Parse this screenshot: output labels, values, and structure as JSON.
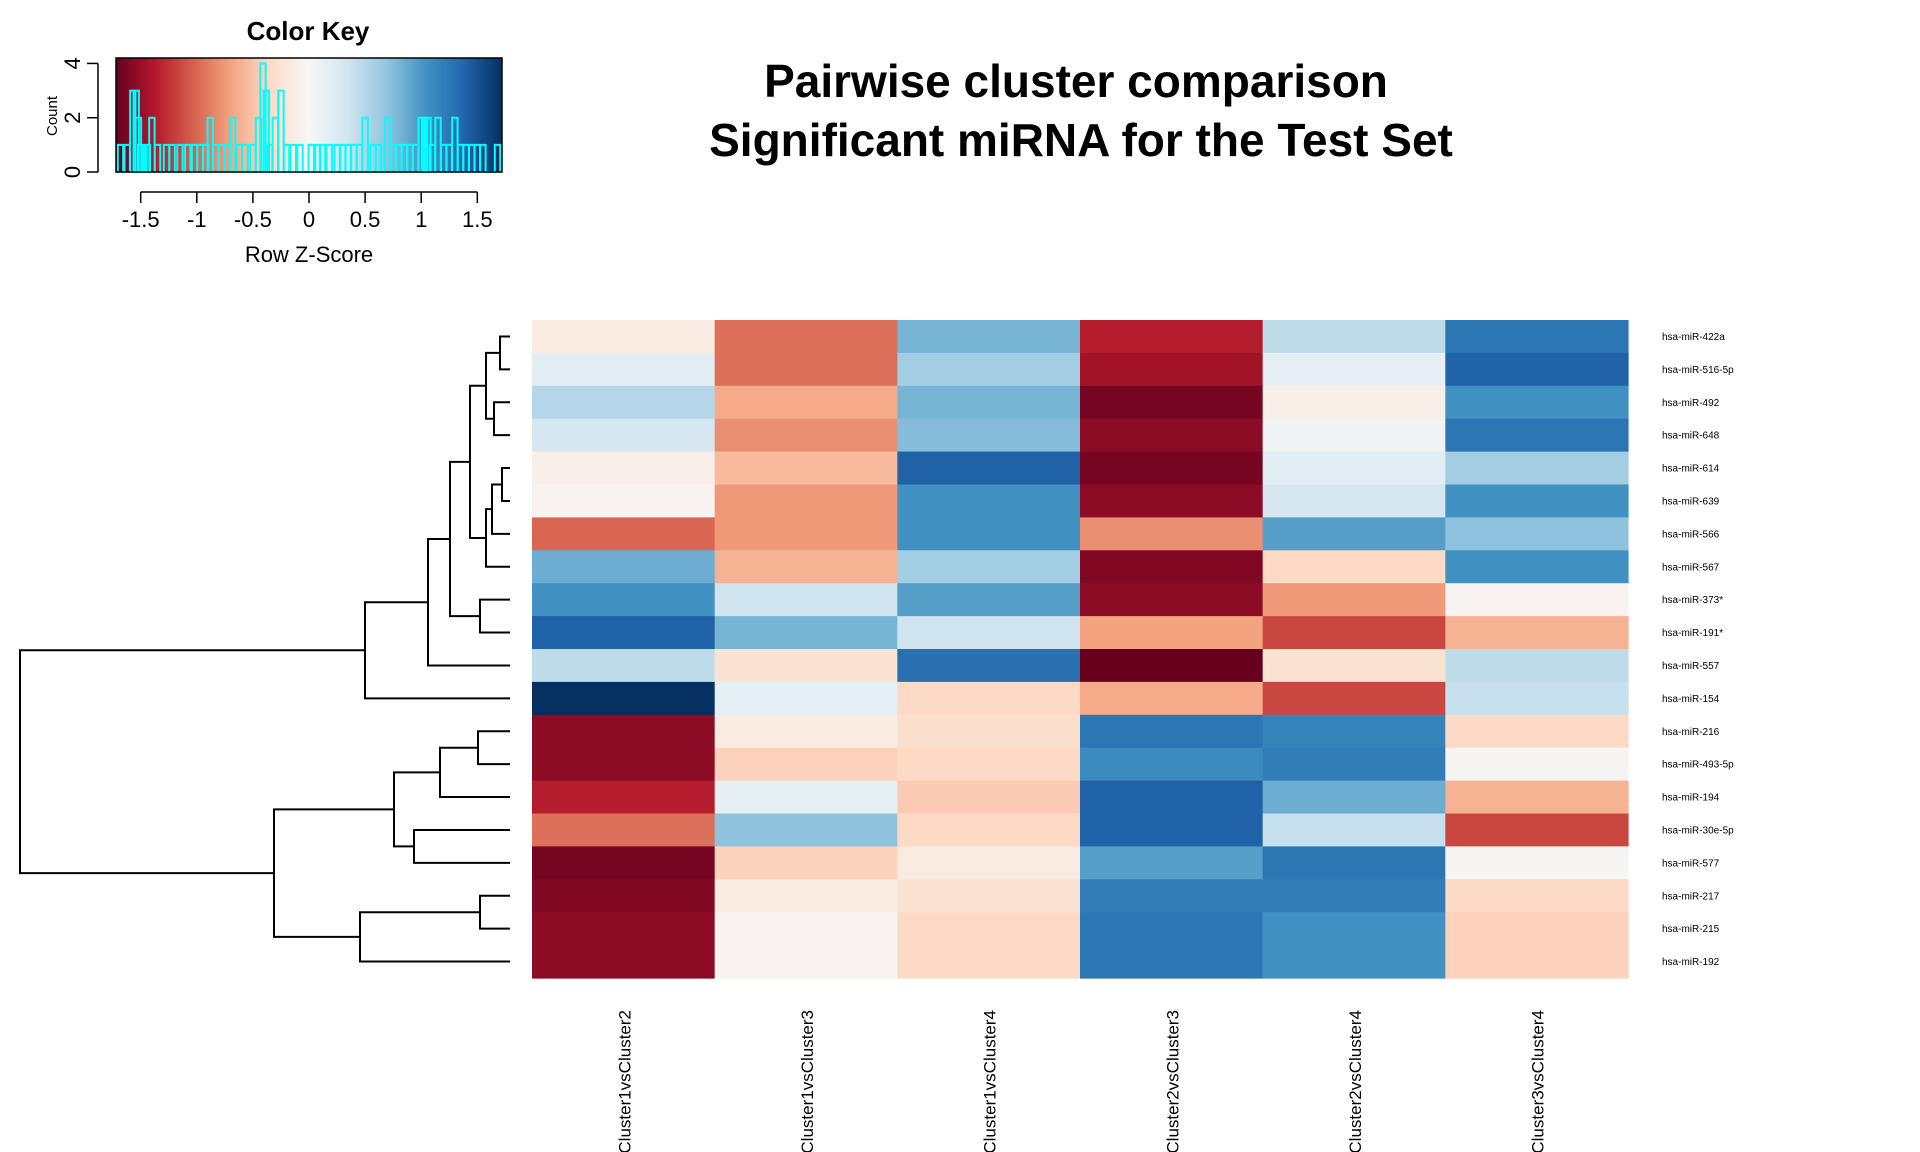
{
  "title_lines": [
    "Pairwise cluster comparison",
    "Significant miRNA for the Test Set"
  ],
  "color_key": {
    "title": "Color Key",
    "xlabel": "Row Z-Score",
    "ylabel": "Count",
    "x_ticks": [
      "-1.5",
      "-1",
      "-0.5",
      "0",
      "0.5",
      "1",
      "1.5"
    ],
    "y_ticks": [
      "0",
      "2",
      "4"
    ],
    "xlim": [
      -1.72,
      1.72
    ],
    "ylim": [
      0,
      4.2
    ],
    "histogram_color": "#00FFFF"
  },
  "palette": {
    "colors": [
      "#67001F",
      "#B2182B",
      "#D6604D",
      "#F4A582",
      "#FDDBC7",
      "#F7F7F7",
      "#D1E5F0",
      "#92C5DE",
      "#4393C3",
      "#2166AC",
      "#053061"
    ],
    "range": [
      -1.72,
      1.72
    ]
  },
  "chart_data": {
    "type": "heatmap",
    "title": "Pairwise cluster comparison Significant miRNA for the Test Set",
    "columns": [
      "Cluster1vsCluster2",
      "Cluster1vsCluster3",
      "Cluster1vsCluster4",
      "Cluster2vsCluster3",
      "Cluster2vsCluster4",
      "Cluster3vsCluster4"
    ],
    "rows": [
      "hsa-miR-422a",
      "hsa-miR-516-5p",
      "hsa-miR-492",
      "hsa-miR-648",
      "hsa-miR-614",
      "hsa-miR-639",
      "hsa-miR-566",
      "hsa-miR-567",
      "hsa-miR-373*",
      "hsa-miR-191*",
      "hsa-miR-557",
      "hsa-miR-154",
      "hsa-miR-216",
      "hsa-miR-493-5p",
      "hsa-miR-194",
      "hsa-miR-30e-5p",
      "hsa-miR-577",
      "hsa-miR-217",
      "hsa-miR-215",
      "hsa-miR-192"
    ],
    "values": [
      [
        -0.15,
        -0.95,
        0.8,
        -1.35,
        0.45,
        1.25
      ],
      [
        0.2,
        -0.95,
        0.6,
        -1.45,
        0.15,
        1.4
      ],
      [
        0.5,
        -0.65,
        0.8,
        -1.65,
        -0.1,
        1.05
      ],
      [
        0.3,
        -0.8,
        0.75,
        -1.55,
        0.05,
        1.25
      ],
      [
        -0.1,
        -0.55,
        1.4,
        -1.65,
        0.2,
        0.6
      ],
      [
        -0.05,
        -0.75,
        1.05,
        -1.55,
        0.3,
        1.05
      ],
      [
        -1.0,
        -0.75,
        1.05,
        -0.8,
        0.95,
        0.7
      ],
      [
        0.85,
        -0.6,
        0.6,
        -1.6,
        -0.35,
        1.05
      ],
      [
        1.05,
        0.35,
        0.95,
        -1.55,
        -0.75,
        -0.05
      ],
      [
        1.4,
        0.8,
        0.35,
        -0.7,
        -1.15,
        -0.6
      ],
      [
        0.45,
        -0.25,
        1.3,
        -1.72,
        -0.25,
        0.45
      ],
      [
        1.72,
        0.15,
        -0.35,
        -0.65,
        -1.15,
        0.4
      ],
      [
        -1.55,
        -0.15,
        -0.3,
        1.25,
        1.15,
        -0.35
      ],
      [
        -1.55,
        -0.4,
        -0.35,
        1.1,
        1.2,
        -0.02
      ],
      [
        -1.35,
        0.15,
        -0.45,
        1.4,
        0.85,
        -0.6
      ],
      [
        -0.95,
        0.7,
        -0.35,
        1.4,
        0.4,
        -1.15
      ],
      [
        -1.65,
        -0.4,
        -0.15,
        0.95,
        1.25,
        -0.02
      ],
      [
        -1.6,
        -0.15,
        -0.25,
        1.2,
        1.2,
        -0.35
      ],
      [
        -1.55,
        -0.05,
        -0.35,
        1.25,
        1.05,
        -0.4
      ],
      [
        -1.55,
        -0.05,
        -0.35,
        1.25,
        1.05,
        -0.4
      ]
    ],
    "value_range": [
      -1.72,
      1.72
    ],
    "histogram": {
      "x": [
        -1.68,
        -1.62,
        -1.57,
        -1.54,
        -1.52,
        -1.5,
        -1.47,
        -1.44,
        -1.4,
        -1.35,
        -1.27,
        -1.22,
        -1.15,
        -1.08,
        -1.02,
        -0.97,
        -0.92,
        -0.88,
        -0.83,
        -0.78,
        -0.73,
        -0.68,
        -0.62,
        -0.57,
        -0.5,
        -0.45,
        -0.41,
        -0.38,
        -0.35,
        -0.3,
        -0.25,
        -0.2,
        -0.14,
        -0.08,
        0.02,
        0.08,
        0.12,
        0.18,
        0.25,
        0.3,
        0.35,
        0.4,
        0.45,
        0.5,
        0.57,
        0.62,
        0.7,
        0.75,
        0.8,
        0.85,
        0.9,
        0.95,
        1.0,
        1.03,
        1.06,
        1.1,
        1.15,
        1.2,
        1.25,
        1.3,
        1.35,
        1.4,
        1.45,
        1.5,
        1.55,
        1.68
      ],
      "count": [
        1,
        1,
        3,
        3,
        2,
        1,
        1,
        1,
        2,
        1,
        1,
        1,
        1,
        1,
        1,
        1,
        1,
        2,
        1,
        1,
        1,
        2,
        1,
        1,
        1,
        2,
        4,
        3,
        1,
        2,
        3,
        1,
        1,
        1,
        1,
        1,
        1,
        1,
        1,
        1,
        1,
        1,
        1,
        2,
        1,
        1,
        2,
        1,
        1,
        1,
        1,
        1,
        2,
        2,
        2,
        1,
        2,
        1,
        1,
        2,
        1,
        1,
        1,
        1,
        1,
        1
      ]
    },
    "row_dendrogram_order": [
      0,
      1,
      2,
      3,
      4,
      5,
      6,
      7,
      8,
      9,
      10,
      11,
      12,
      13,
      14,
      15,
      16,
      17,
      18,
      19
    ]
  }
}
